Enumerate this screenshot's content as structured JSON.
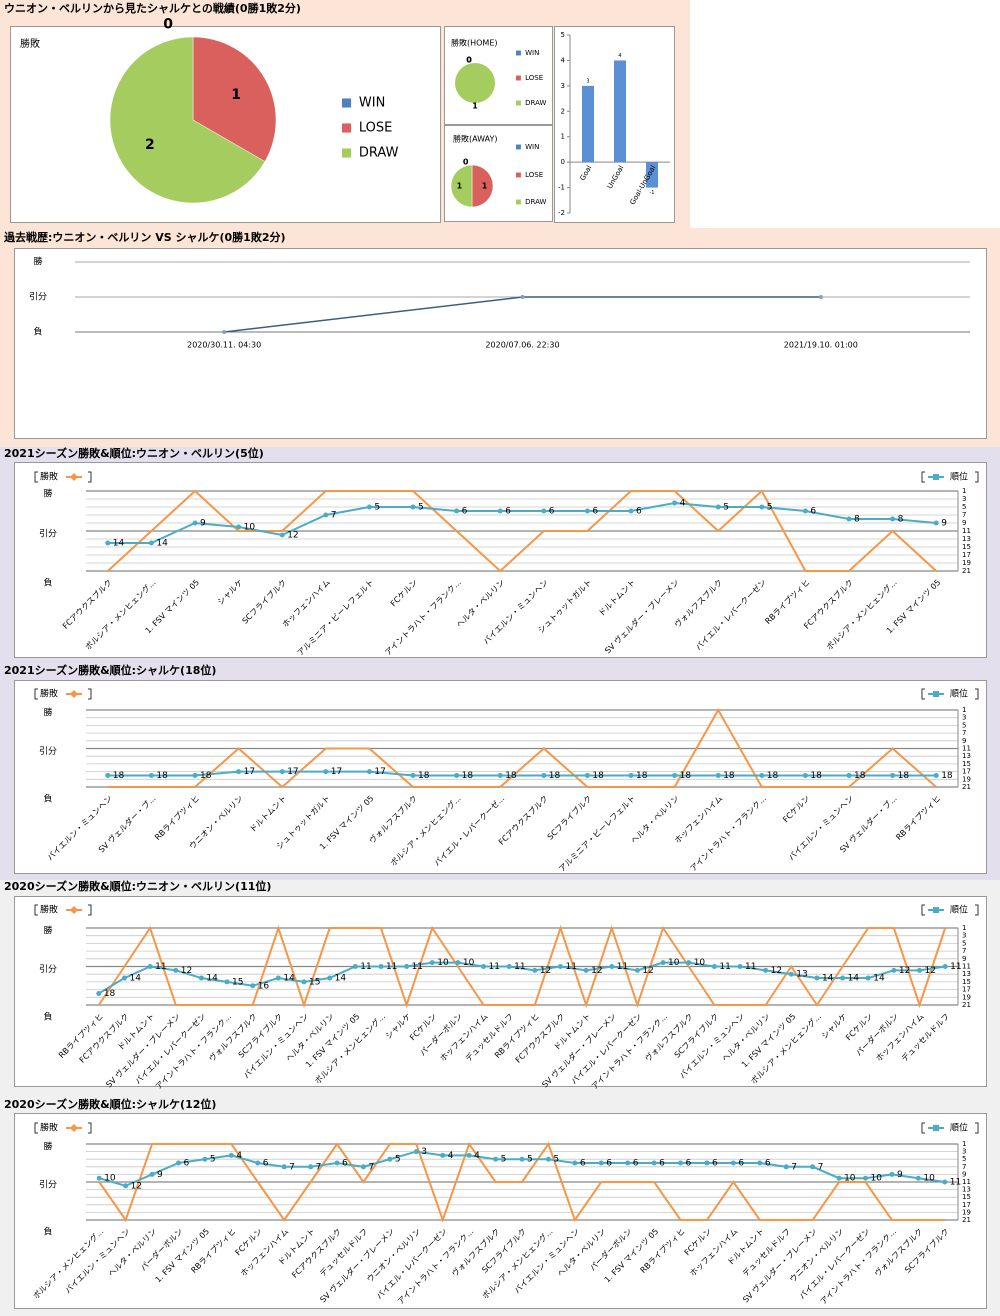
{
  "chart_data": [
    {
      "type": "pie",
      "title": "ウニオン・ベルリンから見たシャルケとの戦績(0勝1敗2分)",
      "label": "勝敗",
      "categories": [
        "WIN",
        "LOSE",
        "DRAW"
      ],
      "values": [
        0,
        1,
        2
      ],
      "colors": [
        "#4f81bd",
        "#d9605c",
        "#a4cc5f"
      ]
    },
    {
      "type": "pie",
      "label": "勝敗(HOME)",
      "categories": [
        "WIN",
        "LOSE",
        "DRAW"
      ],
      "values": [
        0,
        0,
        1
      ],
      "colors": [
        "#4f81bd",
        "#d9605c",
        "#a4cc5f"
      ]
    },
    {
      "type": "pie",
      "label": "勝敗(AWAY)",
      "categories": [
        "WIN",
        "LOSE",
        "DRAW"
      ],
      "values": [
        0,
        1,
        1
      ],
      "colors": [
        "#4f81bd",
        "#d9605c",
        "#a4cc5f"
      ]
    },
    {
      "type": "bar",
      "categories": [
        "Goal",
        "UnGoal",
        "Goal-UnGoal"
      ],
      "values": [
        3,
        4,
        -1
      ],
      "color": "#5b8fd6",
      "ylim": [
        -2,
        5
      ],
      "yticks": [
        -2,
        -1,
        0,
        1,
        2,
        3,
        4,
        5
      ]
    },
    {
      "type": "line",
      "title": "過去戦歴:ウニオン・ベルリン VS シャルケ(0勝1敗2分)",
      "categories": [
        "2020/30.11. 04:30",
        "2020/07.06. 22:30",
        "2021/19.10. 01:00"
      ],
      "values": [
        0,
        1,
        1
      ],
      "color": "#3b5e82",
      "ylim": [
        0,
        2
      ],
      "yticks": [
        {
          "value": 0,
          "label": "負"
        },
        {
          "value": 1,
          "label": "引分"
        },
        {
          "value": 2,
          "label": "勝"
        }
      ],
      "grid": true
    },
    {
      "type": "combo",
      "title": "2021シーズン勝敗&順位:ウニオン・ベルリン(5位)",
      "categories": [
        "FCアウクスブルク",
        "ボルシア・メンヒェング...",
        "1. FSV マインツ 05",
        "シャルケ",
        "SCフライブルク",
        "ホッフェンハイム",
        "アルミニア・ビーレフェルト",
        "FCケルン",
        "アイントラハト・フランク...",
        "ヘルタ・ベルリン",
        "バイエルン・ミュンヘン",
        "シュトゥットガルト",
        "ドルトムント",
        "SV ヴェルダー・ブレーメン",
        "ヴォルフスブルク",
        "バイエル・レバークーゼン",
        "RBライプツィヒ",
        "FCアウクスブルク",
        "ボルシア・メンヒェング...",
        "1. FSV マインツ 05"
      ],
      "series": [
        {
          "name": "勝敗",
          "color": "#f79646",
          "values": [
            0,
            1,
            2,
            1,
            1,
            2,
            2,
            2,
            1,
            0,
            1,
            1,
            2,
            2,
            1,
            2,
            0,
            0,
            1,
            0
          ]
        },
        {
          "name": "順位",
          "color": "#4bacc6",
          "axis": "y2",
          "values": [
            14,
            14,
            9,
            10,
            12,
            7,
            5,
            5,
            6,
            6,
            6,
            6,
            6,
            4,
            5,
            5,
            6,
            8,
            8,
            9
          ]
        }
      ],
      "ylim": [
        0,
        2
      ],
      "yticks": [
        {
          "value": 0,
          "label": "負"
        },
        {
          "value": 1,
          "label": "引分"
        },
        {
          "value": 2,
          "label": "勝"
        }
      ],
      "y2lim": [
        21,
        1
      ],
      "y2ticks": [
        1,
        3,
        5,
        7,
        9,
        11,
        13,
        15,
        17,
        19,
        21
      ]
    },
    {
      "type": "combo",
      "title": "2021シーズン勝敗&順位:シャルケ(18位)",
      "categories": [
        "バイエルン・ミュンヘン",
        "SV ヴェルダー・ブ...",
        "RBライプツィヒ",
        "ウニオン・ベルリン",
        "ドルトムント",
        "シュトゥットガルト",
        "1. FSV マインツ 05",
        "ヴォルフスブルク",
        "ボルシア・メンヒェング...",
        "バイエル・レバークーゼ...",
        "FCアウクスブルク",
        "SCフライブルク",
        "アルミニア・ビーレフェルト",
        "ヘルタ・ベルリン",
        "ホッフェンハイム",
        "アイントラハト・フランク...",
        "FCケルン",
        "バイエルン・ミュンヘン",
        "SV ヴェルダー・ブ...",
        "RBライプツィヒ"
      ],
      "series": [
        {
          "name": "勝敗",
          "color": "#f79646",
          "values": [
            0,
            0,
            0,
            1,
            0,
            1,
            1,
            0,
            0,
            0,
            1,
            0,
            0,
            0,
            2,
            0,
            0,
            0,
            1,
            0
          ]
        },
        {
          "name": "順位",
          "color": "#4bacc6",
          "axis": "y2",
          "values": [
            18,
            18,
            18,
            17,
            17,
            17,
            17,
            18,
            18,
            18,
            18,
            18,
            18,
            18,
            18,
            18,
            18,
            18,
            18,
            18
          ]
        }
      ],
      "ylim": [
        0,
        2
      ],
      "yticks": [
        {
          "value": 0,
          "label": "負"
        },
        {
          "value": 1,
          "label": "引分"
        },
        {
          "value": 2,
          "label": "勝"
        }
      ],
      "y2lim": [
        21,
        1
      ],
      "y2ticks": [
        1,
        3,
        5,
        7,
        9,
        11,
        13,
        15,
        17,
        19,
        21
      ]
    },
    {
      "type": "combo",
      "title": "2020シーズン勝敗&順位:ウニオン・ベルリン(11位)",
      "categories": [
        "RBライプツィヒ",
        "FCアウクスブルク",
        "ドルトムント",
        "SV ヴェルダー・ブレーメン",
        "バイエル・レバークーゼン",
        "アイントラハト・フランク...",
        "ヴォルフスブルク",
        "SCフライブルク",
        "バイエルン・ミュンヘン",
        "ヘルタ・ベルリン",
        "1. FSV マインツ 05",
        "ボルシア・メンヒェング...",
        "シャルケ",
        "FCケルン",
        "パーダーボルン",
        "ホッフェンハイム",
        "デュッセルドルフ",
        "RBライプツィヒ",
        "FCアウクスブルク",
        "ドルトムント",
        "SV ヴェルダー・ブレーメン",
        "バイエル・レバークーゼン",
        "アイントラハト・フランク...",
        "ヴォルフスブルク",
        "SCフライブルク",
        "バイエルン・ミュンヘン",
        "ヘルタ・ベルリン",
        "1. FSV マインツ 05",
        "ボルシア・メンヒェング...",
        "シャルケ",
        "FCケルン",
        "パーダーボルン",
        "ホッフェンハイム",
        "デュッセルドルフ"
      ],
      "series": [
        {
          "name": "勝敗",
          "color": "#f79646",
          "values": [
            0,
            1,
            2,
            0,
            0,
            0,
            0,
            2,
            0,
            2,
            2,
            2,
            0,
            2,
            1,
            0,
            0,
            0,
            2,
            0,
            2,
            0,
            2,
            1,
            0,
            0,
            0,
            1,
            0,
            1,
            2,
            2,
            0,
            2
          ]
        },
        {
          "name": "順位",
          "color": "#4bacc6",
          "axis": "y2",
          "values": [
            18,
            14,
            11,
            12,
            14,
            15,
            16,
            14,
            15,
            14,
            11,
            11,
            11,
            10,
            10,
            11,
            11,
            12,
            11,
            12,
            11,
            12,
            10,
            10,
            11,
            11,
            12,
            13,
            14,
            14,
            14,
            12,
            12,
            11
          ]
        }
      ],
      "ylim": [
        0,
        2
      ],
      "yticks": [
        {
          "value": 0,
          "label": "負"
        },
        {
          "value": 1,
          "label": "引分"
        },
        {
          "value": 2,
          "label": "勝"
        }
      ],
      "y2lim": [
        21,
        1
      ],
      "y2ticks": [
        1,
        3,
        5,
        7,
        9,
        11,
        13,
        15,
        17,
        19,
        21
      ]
    },
    {
      "type": "combo",
      "title": "2020シーズン勝敗&順位:シャルケ(12位)",
      "categories": [
        "ボルシア・メンヒェング...",
        "バイエルン・ミュンヘン",
        "ヘルタ・ベルリン",
        "パーダーボルン",
        "1. FSV マインツ 05",
        "RBライプツィヒ",
        "FCケルン",
        "ホッフェンハイム",
        "ドルトムント",
        "FCアウクスブルク",
        "デュッセルドルフ",
        "SV ヴェルダー・ブレーメン",
        "ウニオン・ベルリン",
        "バイエル・レバークーゼン",
        "アイントラハト・フランク...",
        "ヴォルフスブルク",
        "SCフライブルク",
        "ボルシア・メンヒェング...",
        "バイエルン・ミュンヘン",
        "ヘルタ・ベルリン",
        "パーダーボルン",
        "1. FSV マインツ 05",
        "RBライプツィヒ",
        "FCケルン",
        "ホッフェンハイム",
        "ドルトムント",
        "デュッセルドルフ",
        "SV ヴェルダー・ブレーメン",
        "ウニオン・ベルリン",
        "バイエル・レバークーゼン",
        "アイントラハト・フランク...",
        "ヴォルフスブルク",
        "SCフライブルク"
      ],
      "series": [
        {
          "name": "勝敗",
          "color": "#f79646",
          "values": [
            1,
            0,
            2,
            2,
            2,
            2,
            1,
            0,
            1,
            2,
            1,
            2,
            2,
            0,
            2,
            1,
            1,
            2,
            0,
            1,
            1,
            1,
            0,
            0,
            1,
            0,
            0,
            0,
            1,
            1,
            0,
            0,
            0
          ]
        },
        {
          "name": "順位",
          "color": "#4bacc6",
          "axis": "y2",
          "values": [
            10,
            12,
            9,
            6,
            5,
            4,
            6,
            7,
            7,
            6,
            7,
            5,
            3,
            4,
            4,
            5,
            5,
            5,
            6,
            6,
            6,
            6,
            6,
            6,
            6,
            6,
            7,
            7,
            10,
            10,
            9,
            10,
            11
          ]
        }
      ],
      "ylim": [
        0,
        2
      ],
      "yticks": [
        {
          "value": 0,
          "label": "負"
        },
        {
          "value": 1,
          "label": "引分"
        },
        {
          "value": 2,
          "label": "勝"
        }
      ],
      "y2lim": [
        21,
        1
      ],
      "y2ticks": [
        1,
        3,
        5,
        7,
        9,
        11,
        13,
        15,
        17,
        19,
        21
      ]
    }
  ]
}
